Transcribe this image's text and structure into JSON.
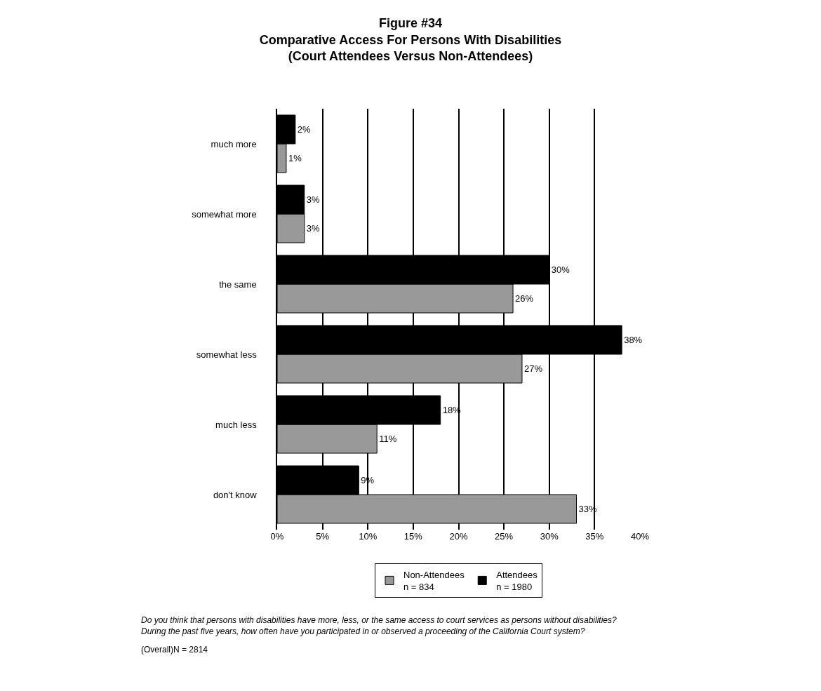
{
  "chart_data": {
    "type": "bar",
    "orientation": "horizontal",
    "title": "Figure #34\nComparative Access For Persons With Disabilities\n(Court Attendees Versus Non-Attendees)",
    "categories": [
      "much more",
      "somewhat more",
      "the same",
      "somewhat less",
      "much less",
      "don't know"
    ],
    "series": [
      {
        "name": "Non-Attendees\nn = 834",
        "color": "#999999",
        "values": [
          1,
          3,
          26,
          27,
          11,
          33
        ],
        "value_labels": [
          "1%",
          "3%",
          "26%",
          "27%",
          "11%",
          "33%"
        ]
      },
      {
        "name": "Attendees\nn = 1980",
        "color": "#000000",
        "values": [
          2,
          3,
          30,
          38,
          18,
          9
        ],
        "value_labels": [
          "2%",
          "3%",
          "30%",
          "38%",
          "18%",
          "9%"
        ]
      }
    ],
    "xlim": [
      0,
      40
    ],
    "xticks": [
      {
        "value": 0,
        "label": "0%"
      },
      {
        "value": 5,
        "label": "5%"
      },
      {
        "value": 10,
        "label": "10%"
      },
      {
        "value": 15,
        "label": "15%"
      },
      {
        "value": 20,
        "label": "20%"
      },
      {
        "value": 25,
        "label": "25%"
      },
      {
        "value": 30,
        "label": "30%"
      },
      {
        "value": 35,
        "label": "35%"
      },
      {
        "value": 40,
        "label": "40%"
      }
    ],
    "grid": "x",
    "legend": "bottom",
    "annotations": [
      "Do you think that persons with disabilities have more, less, or the same access to court services as persons without disabilities?\nDuring the past five years, how often have you participated in or observed a proceeding of the California Court system?",
      "(Overall)N = 2814"
    ]
  }
}
